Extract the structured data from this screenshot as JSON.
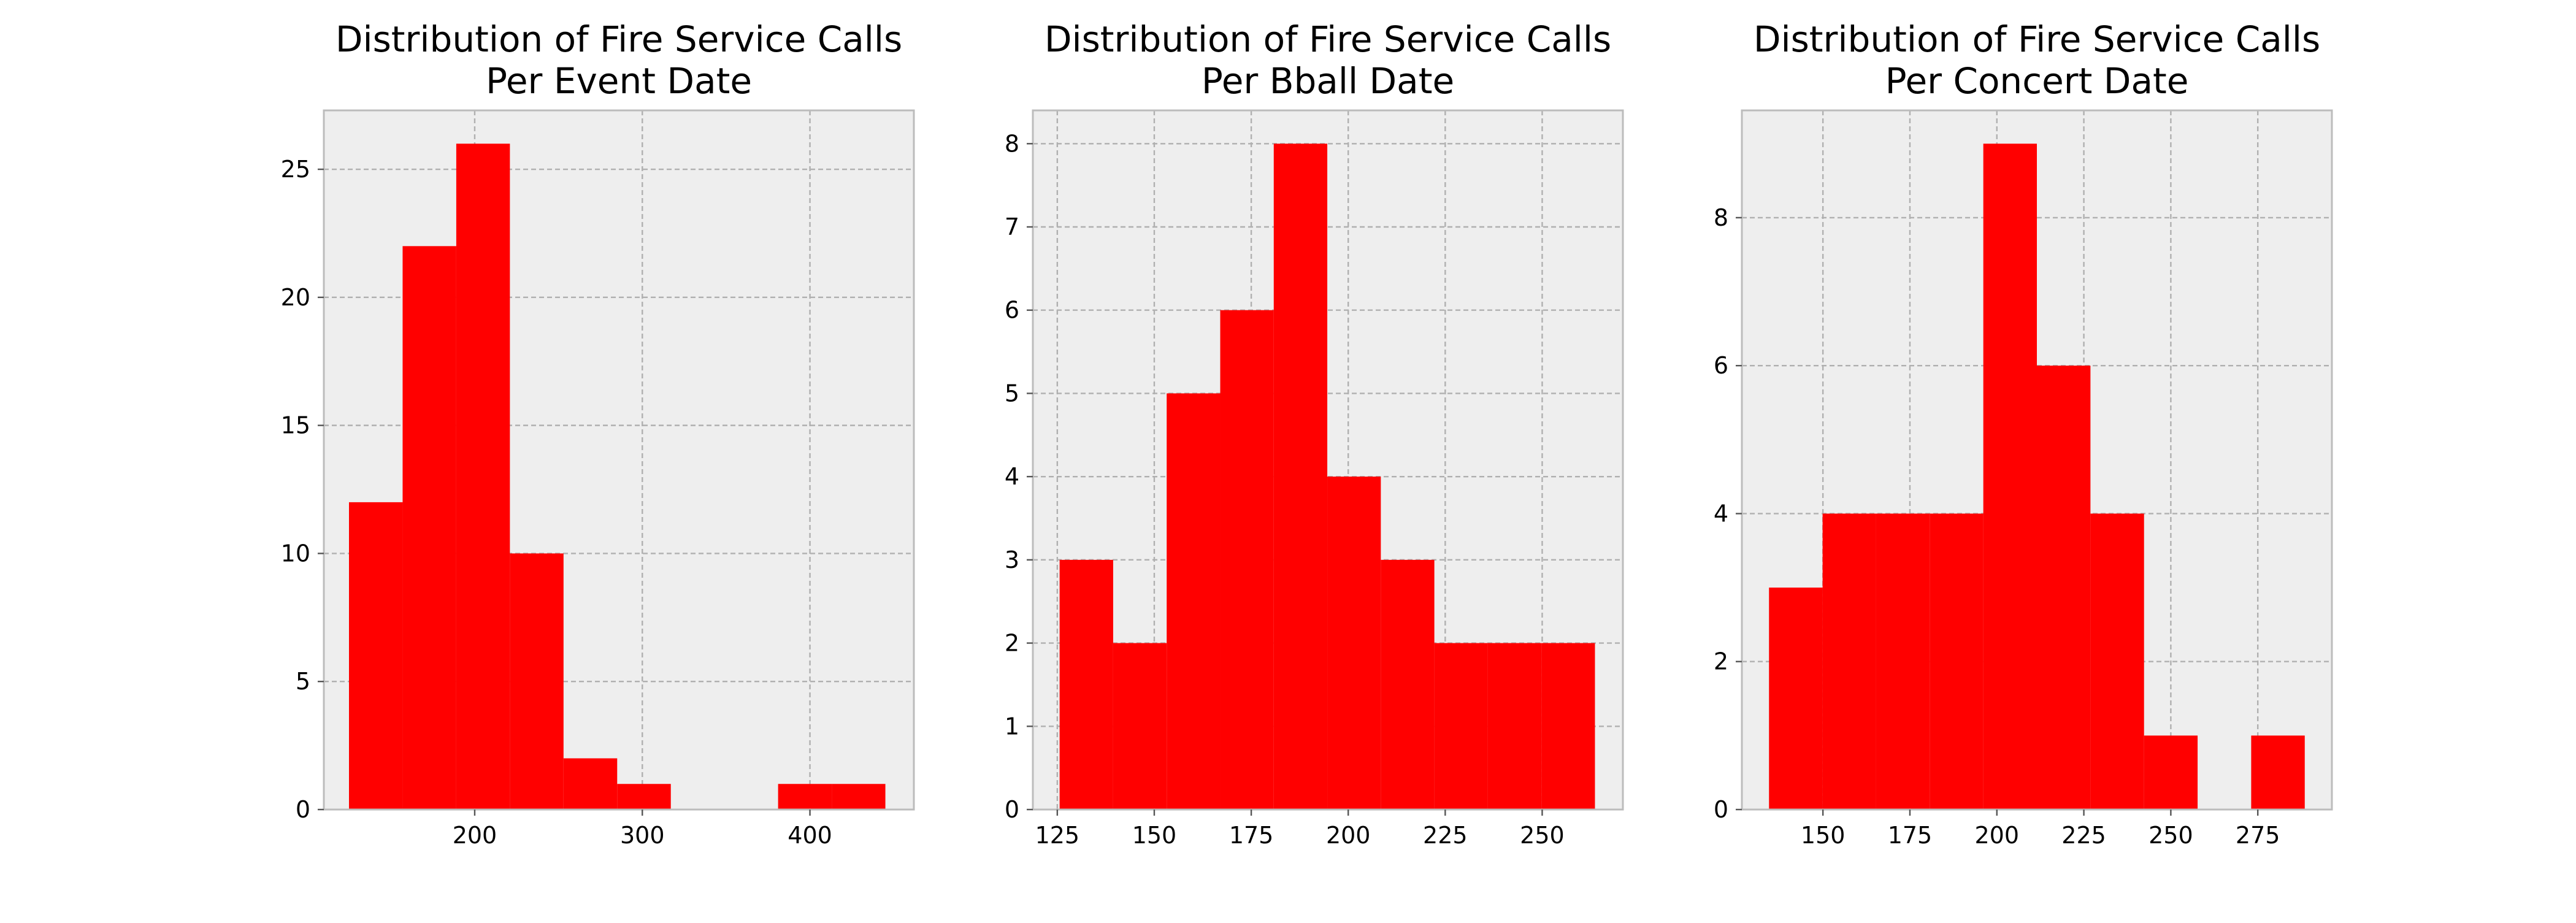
{
  "colors": {
    "bar": "#ff0000",
    "plot_background": "#eeeeee",
    "grid": "#b0b0b0",
    "axis_frame": "#bcbcbc",
    "text": "#000000"
  },
  "chart_data": [
    {
      "type": "bar",
      "title": "Distribution of Fire Service Calls\nPer Event Date",
      "title_lines": [
        "Distribution of Fire Service Calls",
        "Per Event Date"
      ],
      "xlabel": "",
      "ylabel": "",
      "grid": true,
      "xlim": [
        110,
        462
      ],
      "ylim": [
        0,
        27.3
      ],
      "xticks": [
        200,
        300,
        400
      ],
      "yticks": [
        0,
        5,
        10,
        15,
        20,
        25
      ],
      "bins": [
        {
          "x0": 125,
          "x1": 157,
          "value": 12
        },
        {
          "x0": 157,
          "x1": 189,
          "value": 22
        },
        {
          "x0": 189,
          "x1": 221,
          "value": 26
        },
        {
          "x0": 221,
          "x1": 253,
          "value": 10
        },
        {
          "x0": 253,
          "x1": 285,
          "value": 2
        },
        {
          "x0": 285,
          "x1": 317,
          "value": 1
        },
        {
          "x0": 317,
          "x1": 349,
          "value": 0
        },
        {
          "x0": 349,
          "x1": 381,
          "value": 0
        },
        {
          "x0": 381,
          "x1": 413,
          "value": 1
        },
        {
          "x0": 413,
          "x1": 445,
          "value": 1
        }
      ]
    },
    {
      "type": "bar",
      "title": "Distribution of Fire Service Calls\nPer Bball Date",
      "title_lines": [
        "Distribution of Fire Service Calls",
        "Per Bball Date"
      ],
      "xlabel": "",
      "ylabel": "",
      "grid": true,
      "xlim": [
        118.7,
        270.8
      ],
      "ylim": [
        0,
        8.4
      ],
      "xticks": [
        125,
        150,
        175,
        200,
        225,
        250
      ],
      "yticks": [
        0,
        1,
        2,
        3,
        4,
        5,
        6,
        7,
        8
      ],
      "bins": [
        {
          "x0": 125.6,
          "x1": 139.4,
          "value": 3
        },
        {
          "x0": 139.4,
          "x1": 153.2,
          "value": 2
        },
        {
          "x0": 153.2,
          "x1": 167.0,
          "value": 5
        },
        {
          "x0": 167.0,
          "x1": 180.8,
          "value": 6
        },
        {
          "x0": 180.8,
          "x1": 194.6,
          "value": 8
        },
        {
          "x0": 194.6,
          "x1": 208.4,
          "value": 4
        },
        {
          "x0": 208.4,
          "x1": 222.2,
          "value": 3
        },
        {
          "x0": 222.2,
          "x1": 236.0,
          "value": 2
        },
        {
          "x0": 236.0,
          "x1": 249.8,
          "value": 2
        },
        {
          "x0": 249.8,
          "x1": 263.6,
          "value": 2
        }
      ]
    },
    {
      "type": "bar",
      "title": "Distribution of Fire Service Calls\nPer Concert Date",
      "title_lines": [
        "Distribution of Fire Service Calls",
        "Per Concert Date"
      ],
      "xlabel": "",
      "ylabel": "",
      "grid": true,
      "xlim": [
        126.7,
        296.3
      ],
      "ylim": [
        0,
        9.45
      ],
      "xticks": [
        150,
        175,
        200,
        225,
        250,
        275
      ],
      "yticks": [
        0,
        2,
        4,
        6,
        8
      ],
      "bins": [
        {
          "x0": 134.5,
          "x1": 149.9,
          "value": 3
        },
        {
          "x0": 149.9,
          "x1": 165.3,
          "value": 4
        },
        {
          "x0": 165.3,
          "x1": 180.7,
          "value": 4
        },
        {
          "x0": 180.7,
          "x1": 196.1,
          "value": 4
        },
        {
          "x0": 196.1,
          "x1": 211.5,
          "value": 9
        },
        {
          "x0": 211.5,
          "x1": 226.9,
          "value": 6
        },
        {
          "x0": 226.9,
          "x1": 242.3,
          "value": 4
        },
        {
          "x0": 242.3,
          "x1": 257.7,
          "value": 1
        },
        {
          "x0": 257.7,
          "x1": 273.1,
          "value": 0
        },
        {
          "x0": 273.1,
          "x1": 288.5,
          "value": 1
        }
      ]
    }
  ]
}
